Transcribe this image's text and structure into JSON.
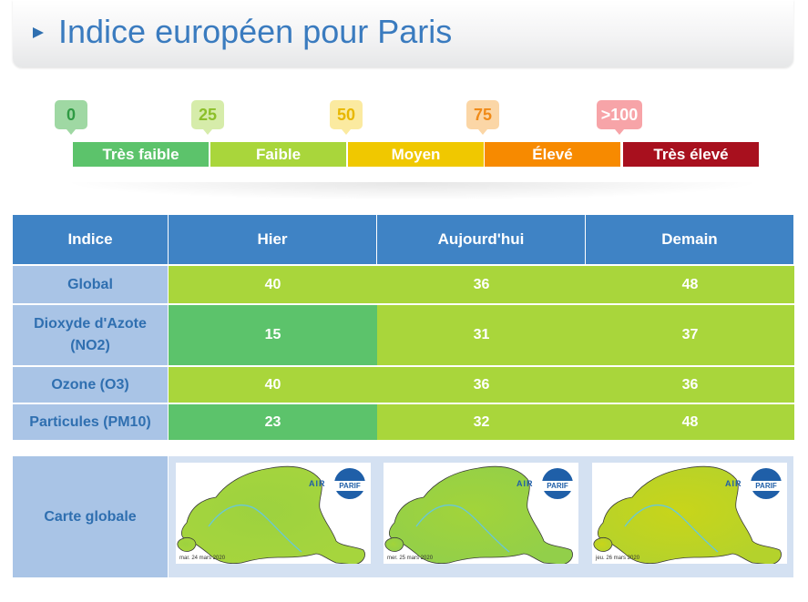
{
  "header": {
    "title": "Indice européen pour Paris"
  },
  "scale": {
    "markers": [
      {
        "value": "0",
        "bg": "#9fd8a3",
        "fg": "#2f9a43",
        "pin": "#9fd8a3"
      },
      {
        "value": "25",
        "bg": "#d6ecaa",
        "fg": "#8cbf2a",
        "pin": "#d6ecaa"
      },
      {
        "value": "50",
        "bg": "#fbeaa0",
        "fg": "#e8b700",
        "pin": "#fbeaa0"
      },
      {
        "value": "75",
        "bg": "#fbd6a6",
        "fg": "#f08a18",
        "pin": "#fbd6a6"
      },
      {
        "value": ">100",
        "bg": "#f7a4a8",
        "fg": "#ffffff",
        "pin": "#f7a4a8"
      }
    ],
    "bands": [
      {
        "label": "Très faible",
        "color": "#5cc36b"
      },
      {
        "label": "Faible",
        "color": "#a9d63b"
      },
      {
        "label": "Moyen",
        "color": "#f0c800"
      },
      {
        "label": "Élevé",
        "color": "#f78a00"
      },
      {
        "label": "Très élevé",
        "color": "#a8101e"
      }
    ]
  },
  "table": {
    "headers": [
      "Indice",
      "Hier",
      "Aujourd'hui",
      "Demain"
    ],
    "rows": [
      {
        "label": "Global",
        "values": [
          "40",
          "36",
          "48"
        ],
        "colors": [
          "#a9d63b",
          "#a9d63b",
          "#a9d63b"
        ]
      },
      {
        "label": "Dioxyde d'Azote (NO2)",
        "values": [
          "15",
          "31",
          "37"
        ],
        "colors": [
          "#5cc36b",
          "#a9d63b",
          "#a9d63b"
        ]
      },
      {
        "label": "Ozone (O3)",
        "values": [
          "40",
          "36",
          "36"
        ],
        "colors": [
          "#a9d63b",
          "#a9d63b",
          "#a9d63b"
        ]
      },
      {
        "label": "Particules (PM10)",
        "values": [
          "23",
          "32",
          "48"
        ],
        "colors": [
          "#5cc36b",
          "#a9d63b",
          "#a9d63b"
        ]
      }
    ],
    "map_row_label": "Carte globale",
    "maps": [
      {
        "date": "mar. 24 mars 2020",
        "fill": "#9dd23f",
        "fill2": "#a6d53d"
      },
      {
        "date": "mer. 25 mars 2020",
        "fill": "#a2d43a",
        "fill2": "#92cf4a"
      },
      {
        "date": "jeu. 26 mars 2020",
        "fill": "#c8d51a",
        "fill2": "#b4d22c"
      }
    ],
    "logo": {
      "air": "AIR",
      "parif": "PARIF"
    }
  }
}
